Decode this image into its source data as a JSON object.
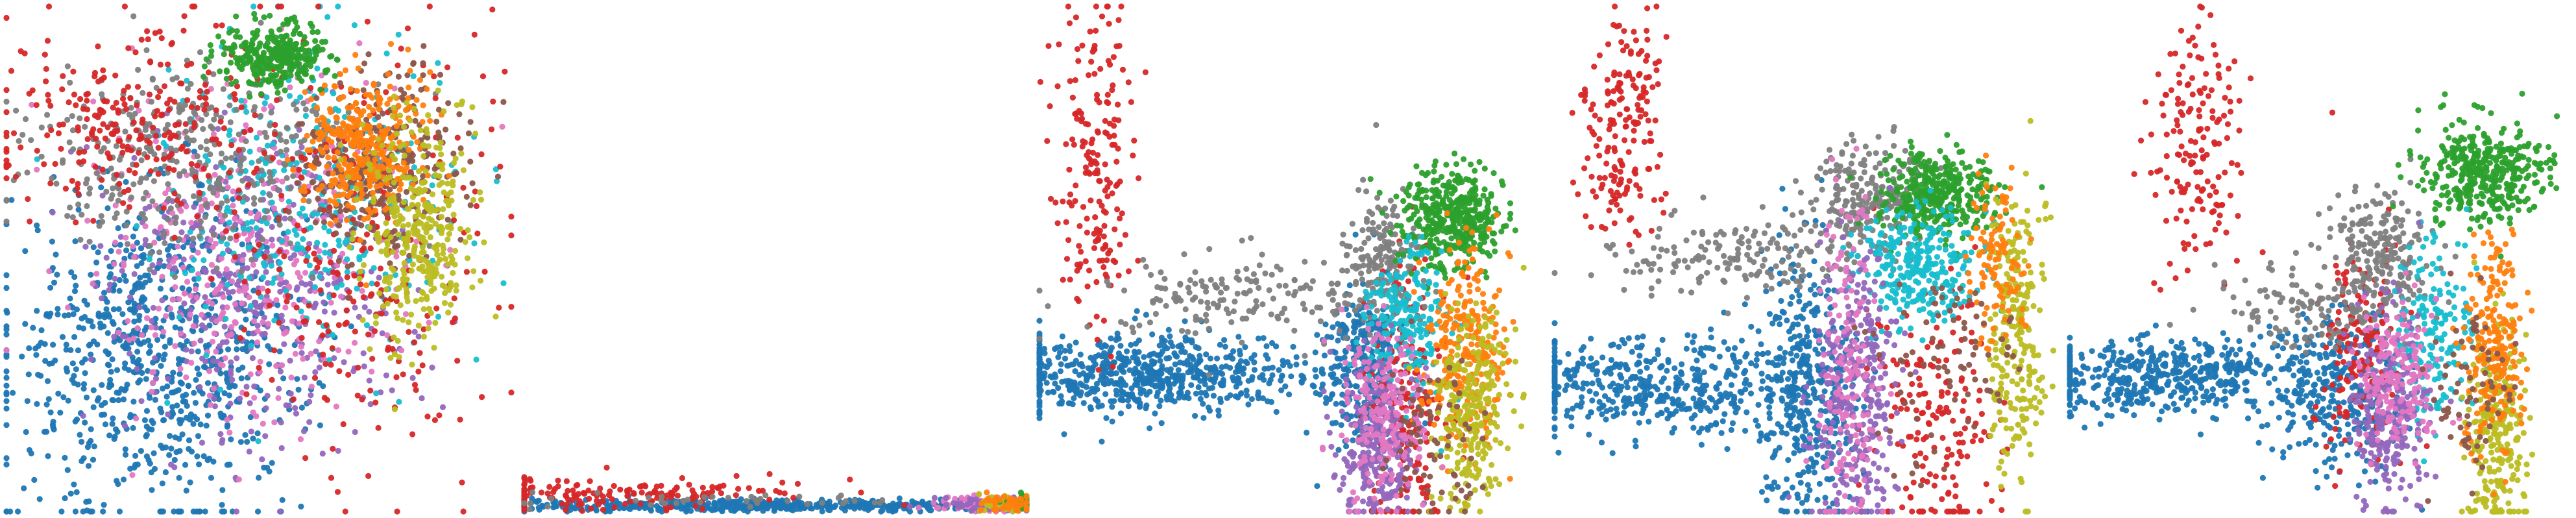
{
  "figure": {
    "background": "#ffffff",
    "point_opacity": 0.95,
    "palette": {
      "blue": "#1f77b4",
      "orange": "#ff7f0e",
      "green": "#2ca02c",
      "red": "#d62728",
      "purple": "#9467bd",
      "brown": "#8c564b",
      "pink": "#e377c2",
      "gray": "#7f7f7f",
      "olive": "#bcbd22",
      "cyan": "#17becf"
    }
  },
  "chart_data": [
    {
      "type": "scatter",
      "title": "",
      "xlabel": "",
      "ylabel": "",
      "axes": "off",
      "grid": false,
      "legend": "none",
      "xlim": [
        0,
        100
      ],
      "ylim": [
        0,
        100
      ],
      "series": [
        {
          "color": "blue",
          "clusters": [
            {
              "x": 30,
              "y": 32,
              "sx": 15,
              "sy": 16,
              "n": 800
            }
          ]
        },
        {
          "color": "purple",
          "clusters": [
            {
              "x": 50,
              "y": 45,
              "sx": 15,
              "sy": 16,
              "n": 450
            }
          ]
        },
        {
          "color": "pink",
          "clusters": [
            {
              "x": 48,
              "y": 52,
              "sx": 16,
              "sy": 17,
              "n": 380
            }
          ]
        },
        {
          "color": "cyan",
          "clusters": [
            {
              "x": 58,
              "y": 62,
              "sx": 14,
              "sy": 15,
              "n": 330
            }
          ]
        },
        {
          "color": "gray",
          "clusters": [
            {
              "x": 36,
              "y": 70,
              "sx": 16,
              "sy": 9,
              "n": 380
            }
          ]
        },
        {
          "color": "red",
          "clusters": [
            {
              "x": 25,
              "y": 78,
              "sx": 14,
              "sy": 10,
              "n": 260
            },
            {
              "x": 72,
              "y": 50,
              "sx": 13,
              "sy": 22,
              "n": 260
            }
          ]
        },
        {
          "color": "brown",
          "clusters": [
            {
              "x": 74,
              "y": 68,
              "sx": 8,
              "sy": 9,
              "n": 300
            }
          ]
        },
        {
          "color": "orange",
          "clusters": [
            {
              "x": 71,
              "y": 72,
              "sx": 6,
              "sy": 7,
              "n": 330
            }
          ]
        },
        {
          "color": "olive",
          "clusters": [
            {
              "x": 82,
              "y": 55,
              "sx": 6,
              "sy": 11,
              "n": 340
            }
          ]
        },
        {
          "color": "green",
          "clusters": [
            {
              "x": 53,
              "y": 90,
              "sx": 5,
              "sy": 3,
              "n": 320
            }
          ]
        }
      ]
    },
    {
      "type": "scatter",
      "title": "",
      "xlabel": "",
      "ylabel": "",
      "axes": "off",
      "grid": false,
      "legend": "none",
      "xlim": [
        0,
        100
      ],
      "ylim": [
        0,
        100
      ],
      "series": [
        {
          "color": "blue",
          "clusters": [
            {
              "x": 50,
              "y": 1.2,
              "sx": 28,
              "sy": 0.6,
              "n": 500
            }
          ]
        },
        {
          "color": "red",
          "clusters": [
            {
              "x": 18,
              "y": 3.5,
              "sx": 18,
              "sy": 1.6,
              "n": 170
            }
          ]
        },
        {
          "color": "pink",
          "clusters": [
            {
              "x": 92,
              "y": 1.5,
              "sx": 6,
              "sy": 0.8,
              "n": 90
            }
          ]
        },
        {
          "color": "purple",
          "clusters": [
            {
              "x": 94,
              "y": 1.4,
              "sx": 5,
              "sy": 0.7,
              "n": 70
            }
          ]
        },
        {
          "color": "olive",
          "clusters": [
            {
              "x": 97,
              "y": 1.6,
              "sx": 3,
              "sy": 0.8,
              "n": 60
            }
          ]
        },
        {
          "color": "green",
          "clusters": [
            {
              "x": 99,
              "y": 1.8,
              "sx": 2,
              "sy": 0.8,
              "n": 40
            }
          ]
        },
        {
          "color": "orange",
          "clusters": [
            {
              "x": 96,
              "y": 1.5,
              "sx": 3,
              "sy": 0.8,
              "n": 40
            }
          ]
        },
        {
          "color": "gray",
          "clusters": [
            {
              "x": 40,
              "y": 2.2,
              "sx": 20,
              "sy": 0.8,
              "n": 40
            }
          ]
        }
      ]
    },
    {
      "type": "scatter",
      "title": "",
      "xlabel": "",
      "ylabel": "",
      "axes": "off",
      "grid": false,
      "legend": "none",
      "xlim": [
        0,
        100
      ],
      "ylim": [
        0,
        100
      ],
      "series": [
        {
          "color": "blue",
          "clusters": [
            {
              "x": 22,
              "y": 27,
              "sx": 17,
              "sy": 4,
              "n": 650
            },
            {
              "x": 64,
              "y": 28,
              "sx": 4,
              "sy": 8,
              "n": 280
            }
          ]
        },
        {
          "color": "red",
          "clusters": [
            {
              "x": 11,
              "y": 70,
              "sx": 4,
              "sy": 17,
              "n": 190
            },
            {
              "x": 73,
              "y": 22,
              "sx": 4,
              "sy": 15,
              "n": 200
            }
          ]
        },
        {
          "color": "gray",
          "clusters": [
            {
              "x": 40,
              "y": 42,
              "sx": 16,
              "sy": 4,
              "n": 170
            },
            {
              "x": 68,
              "y": 50,
              "sx": 4,
              "sy": 6,
              "n": 160
            }
          ]
        },
        {
          "color": "green",
          "clusters": [
            {
              "x": 82,
              "y": 58,
              "sx": 5,
              "sy": 5,
              "n": 420
            }
          ]
        },
        {
          "color": "cyan",
          "clusters": [
            {
              "x": 73,
              "y": 38,
              "sx": 4,
              "sy": 7,
              "n": 200
            }
          ]
        },
        {
          "color": "orange",
          "clusters": [
            {
              "x": 85,
              "y": 33,
              "sx": 4,
              "sy": 10,
              "n": 260
            }
          ]
        },
        {
          "color": "olive",
          "clusters": [
            {
              "x": 86,
              "y": 20,
              "sx": 4,
              "sy": 11,
              "n": 260
            }
          ]
        },
        {
          "color": "purple",
          "clusters": [
            {
              "x": 67,
              "y": 13,
              "sx": 4,
              "sy": 8,
              "n": 260
            }
          ]
        },
        {
          "color": "pink",
          "clusters": [
            {
              "x": 68,
              "y": 20,
              "sx": 4,
              "sy": 10,
              "n": 200
            }
          ]
        },
        {
          "color": "brown",
          "clusters": [
            {
              "x": 78,
              "y": 15,
              "sx": 5,
              "sy": 8,
              "n": 70
            }
          ]
        }
      ]
    },
    {
      "type": "scatter",
      "title": "",
      "xlabel": "",
      "ylabel": "",
      "axes": "off",
      "grid": false,
      "legend": "none",
      "xlim": [
        0,
        100
      ],
      "ylim": [
        0,
        100
      ],
      "series": [
        {
          "color": "blue",
          "clusters": [
            {
              "x": 20,
              "y": 25,
              "sx": 15,
              "sy": 5,
              "n": 450
            },
            {
              "x": 50,
              "y": 25,
              "sx": 5,
              "sy": 14,
              "n": 380
            }
          ]
        },
        {
          "color": "red",
          "clusters": [
            {
              "x": 14,
              "y": 78,
              "sx": 4,
              "sy": 12,
              "n": 180
            },
            {
              "x": 76,
              "y": 18,
              "sx": 6,
              "sy": 14,
              "n": 180
            }
          ]
        },
        {
          "color": "gray",
          "clusters": [
            {
              "x": 35,
              "y": 50,
              "sx": 12,
              "sy": 4,
              "n": 160
            },
            {
              "x": 62,
              "y": 62,
              "sx": 6,
              "sy": 6,
              "n": 220
            }
          ]
        },
        {
          "color": "green",
          "clusters": [
            {
              "x": 76,
              "y": 63,
              "sx": 6,
              "sy": 4,
              "n": 380
            }
          ]
        },
        {
          "color": "cyan",
          "clusters": [
            {
              "x": 72,
              "y": 48,
              "sx": 6,
              "sy": 6,
              "n": 280
            }
          ]
        },
        {
          "color": "purple",
          "clusters": [
            {
              "x": 60,
              "y": 22,
              "sx": 4,
              "sy": 15,
              "n": 300
            }
          ]
        },
        {
          "color": "pink",
          "clusters": [
            {
              "x": 58,
              "y": 30,
              "sx": 3,
              "sy": 16,
              "n": 160
            }
          ]
        },
        {
          "color": "olive",
          "clusters": [
            {
              "x": 92,
              "y": 35,
              "sx": 3,
              "sy": 15,
              "n": 240
            }
          ]
        },
        {
          "color": "orange",
          "clusters": [
            {
              "x": 88,
              "y": 50,
              "sx": 3,
              "sy": 9,
              "n": 110
            }
          ]
        },
        {
          "color": "brown",
          "clusters": [
            {
              "x": 78,
              "y": 30,
              "sx": 7,
              "sy": 10,
              "n": 80
            }
          ]
        }
      ]
    },
    {
      "type": "scatter",
      "title": "",
      "xlabel": "",
      "ylabel": "",
      "axes": "off",
      "grid": false,
      "legend": "none",
      "xlim": [
        0,
        100
      ],
      "ylim": [
        0,
        100
      ],
      "series": [
        {
          "color": "blue",
          "clusters": [
            {
              "x": 20,
              "y": 27,
              "sx": 15,
              "sy": 4,
              "n": 500
            },
            {
              "x": 53,
              "y": 24,
              "sx": 7,
              "sy": 8,
              "n": 280
            }
          ]
        },
        {
          "color": "red",
          "clusters": [
            {
              "x": 25,
              "y": 72,
              "sx": 5,
              "sy": 12,
              "n": 160
            },
            {
              "x": 58,
              "y": 30,
              "sx": 4,
              "sy": 11,
              "n": 160
            }
          ]
        },
        {
          "color": "gray",
          "clusters": [
            {
              "x": 50,
              "y": 40,
              "sx": 10,
              "sy": 4,
              "n": 130
            },
            {
              "x": 62,
              "y": 52,
              "sx": 5,
              "sy": 6,
              "n": 200
            }
          ]
        },
        {
          "color": "green",
          "clusters": [
            {
              "x": 83,
              "y": 67,
              "sx": 6,
              "sy": 5,
              "n": 380
            }
          ]
        },
        {
          "color": "cyan",
          "clusters": [
            {
              "x": 73,
              "y": 36,
              "sx": 4,
              "sy": 9,
              "n": 180
            }
          ]
        },
        {
          "color": "purple",
          "clusters": [
            {
              "x": 64,
              "y": 20,
              "sx": 4,
              "sy": 10,
              "n": 260
            }
          ]
        },
        {
          "color": "pink",
          "clusters": [
            {
              "x": 66,
              "y": 27,
              "sx": 4,
              "sy": 8,
              "n": 170
            }
          ]
        },
        {
          "color": "olive",
          "clusters": [
            {
              "x": 86,
              "y": 15,
              "sx": 3,
              "sy": 11,
              "n": 250
            }
          ]
        },
        {
          "color": "orange",
          "clusters": [
            {
              "x": 85,
              "y": 32,
              "sx": 3,
              "sy": 11,
              "n": 220
            }
          ]
        },
        {
          "color": "brown",
          "clusters": [
            {
              "x": 80,
              "y": 24,
              "sx": 4,
              "sy": 9,
              "n": 70
            }
          ]
        }
      ]
    }
  ]
}
